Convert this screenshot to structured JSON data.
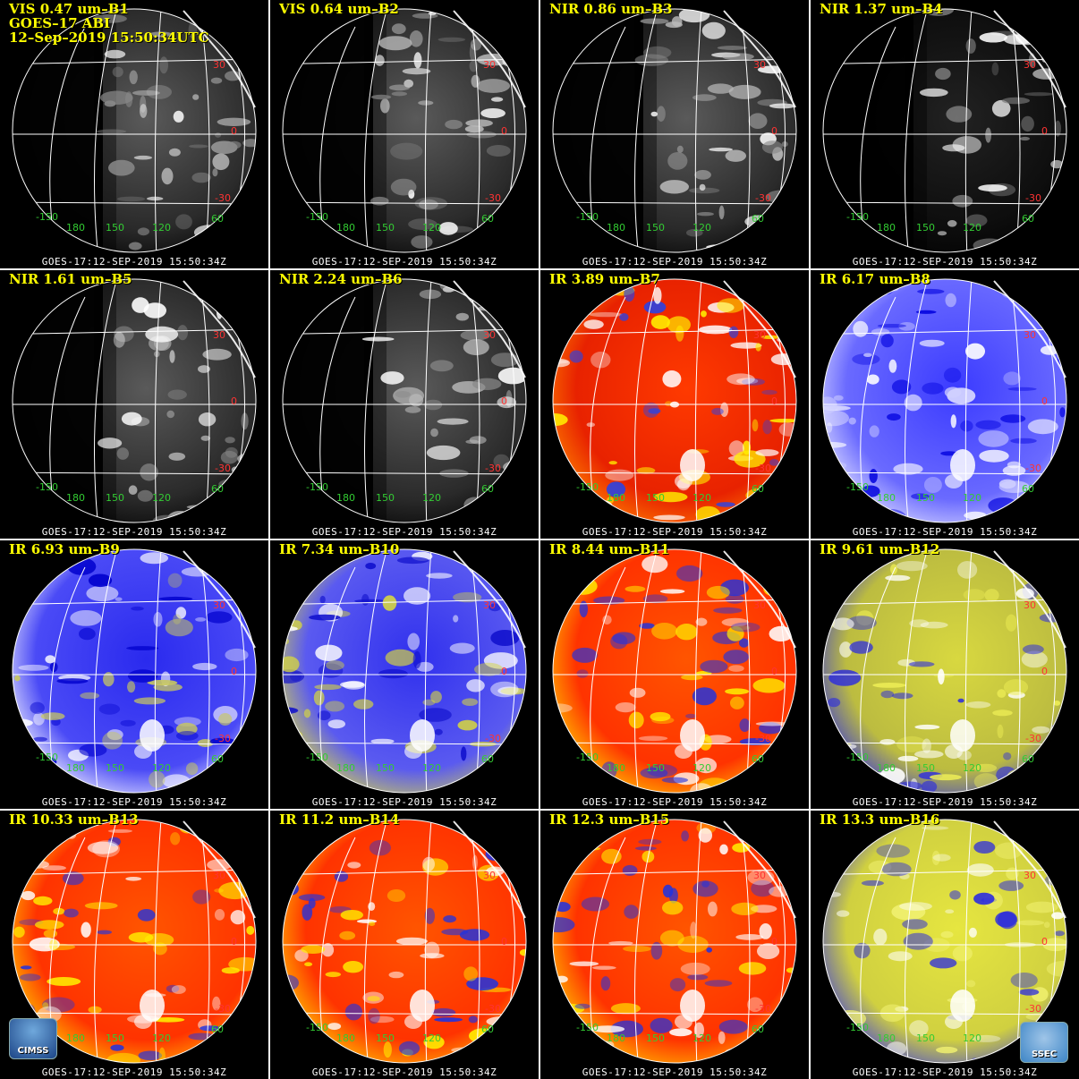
{
  "panels": [
    {
      "title": "VIS 0.47 um–B1",
      "extra": [
        "GOES–17 ABI",
        "12–Sep–2019 15:50:34UTC"
      ],
      "style": "vis",
      "footer": "GOES-17:12-SEP-2019 15:50:34Z"
    },
    {
      "title": "VIS 0.64 um–B2",
      "extra": [],
      "style": "vis",
      "footer": "GOES-17:12-SEP-2019 15:50:34Z"
    },
    {
      "title": "NIR 0.86 um–B3",
      "extra": [],
      "style": "vis",
      "footer": "GOES-17:12-SEP-2019 15:50:34Z"
    },
    {
      "title": "NIR 1.37 um–B4",
      "extra": [],
      "style": "dark",
      "footer": "GOES-17:12-SEP-2019 15:50:34Z"
    },
    {
      "title": "NIR 1.61 um–B5",
      "extra": [],
      "style": "vis",
      "footer": "GOES-17:12-SEP-2019 15:50:34Z"
    },
    {
      "title": "NIR 2.24 um–B6",
      "extra": [],
      "style": "vis",
      "footer": "GOES-17:12-SEP-2019 15:50:34Z"
    },
    {
      "title": "IR 3.89 um–B7",
      "extra": [],
      "style": "sw",
      "footer": "GOES-17:12-SEP-2019 15:50:34Z"
    },
    {
      "title": "IR 6.17 um–B8",
      "extra": [],
      "style": "wv1",
      "footer": "GOES-17:12-SEP-2019 15:50:34Z"
    },
    {
      "title": "IR 6.93 um–B9",
      "extra": [],
      "style": "wv2",
      "footer": "GOES-17:12-SEP-2019 15:50:34Z"
    },
    {
      "title": "IR 7.34 um–B10",
      "extra": [],
      "style": "wv3",
      "footer": "GOES-17:12-SEP-2019 15:50:34Z"
    },
    {
      "title": "IR 8.44 um–B11",
      "extra": [],
      "style": "ir",
      "footer": "GOES-17:12-SEP-2019 15:50:34Z"
    },
    {
      "title": "IR 9.61 um–B12",
      "extra": [],
      "style": "oz",
      "footer": "GOES-17:12-SEP-2019 15:50:34Z"
    },
    {
      "title": "IR 10.33 um–B13",
      "extra": [],
      "style": "ir",
      "footer": "GOES-17:12-SEP-2019 15:50:34Z"
    },
    {
      "title": "IR 11.2 um–B14",
      "extra": [],
      "style": "ir",
      "footer": "GOES-17:12-SEP-2019 15:50:34Z"
    },
    {
      "title": "IR 12.3 um–B15",
      "extra": [],
      "style": "ir",
      "footer": "GOES-17:12-SEP-2019 15:50:34Z"
    },
    {
      "title": "IR 13.3 um–B16",
      "extra": [],
      "style": "co2",
      "footer": "GOES-17:12-SEP-2019 15:50:34Z"
    }
  ],
  "grid_labels": {
    "latitudes": [
      "30",
      "0",
      "-30"
    ],
    "longitudes": [
      "-150",
      "180",
      "150",
      "120",
      "60"
    ]
  },
  "logos": {
    "left": "CIMSS",
    "right": "SSEC"
  },
  "colors": {
    "title": "#ffff00",
    "lat_label": "#ff3333",
    "lon_label": "#33cc33",
    "gridline": "#ffffff"
  }
}
